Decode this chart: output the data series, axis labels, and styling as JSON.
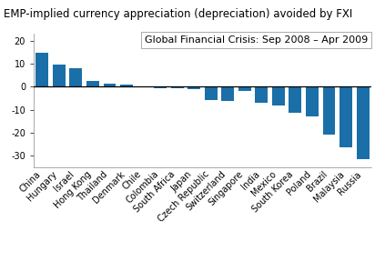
{
  "title": "EMP-implied currency appreciation (depreciation) avoided by FXI",
  "annotation": "Global Financial Crisis: Sep 2008 – Apr 2009",
  "categories": [
    "China",
    "Hungary",
    "Israel",
    "Hong Kong",
    "Thailand",
    "Denmark",
    "Chile",
    "Colombia",
    "South Africa",
    "Japan",
    "Czech Republic",
    "Switzerland",
    "Singapore",
    "India",
    "Mexico",
    "South Korea",
    "Poland",
    "Brazil",
    "Malaysia",
    "Russia"
  ],
  "values": [
    14.8,
    9.5,
    8.0,
    2.5,
    1.3,
    1.1,
    -0.3,
    -0.5,
    -0.7,
    -1.2,
    -6.0,
    -6.2,
    -2.0,
    -7.0,
    -8.2,
    -11.5,
    -13.0,
    -21.0,
    -26.5,
    -31.5
  ],
  "bar_color": "#1a6fa8",
  "ylim": [
    -35,
    23
  ],
  "yticks": [
    -30,
    -20,
    -10,
    0,
    10,
    20
  ],
  "title_fontsize": 8.5,
  "annotation_fontsize": 8,
  "tick_fontsize": 7,
  "background_color": "#ffffff"
}
